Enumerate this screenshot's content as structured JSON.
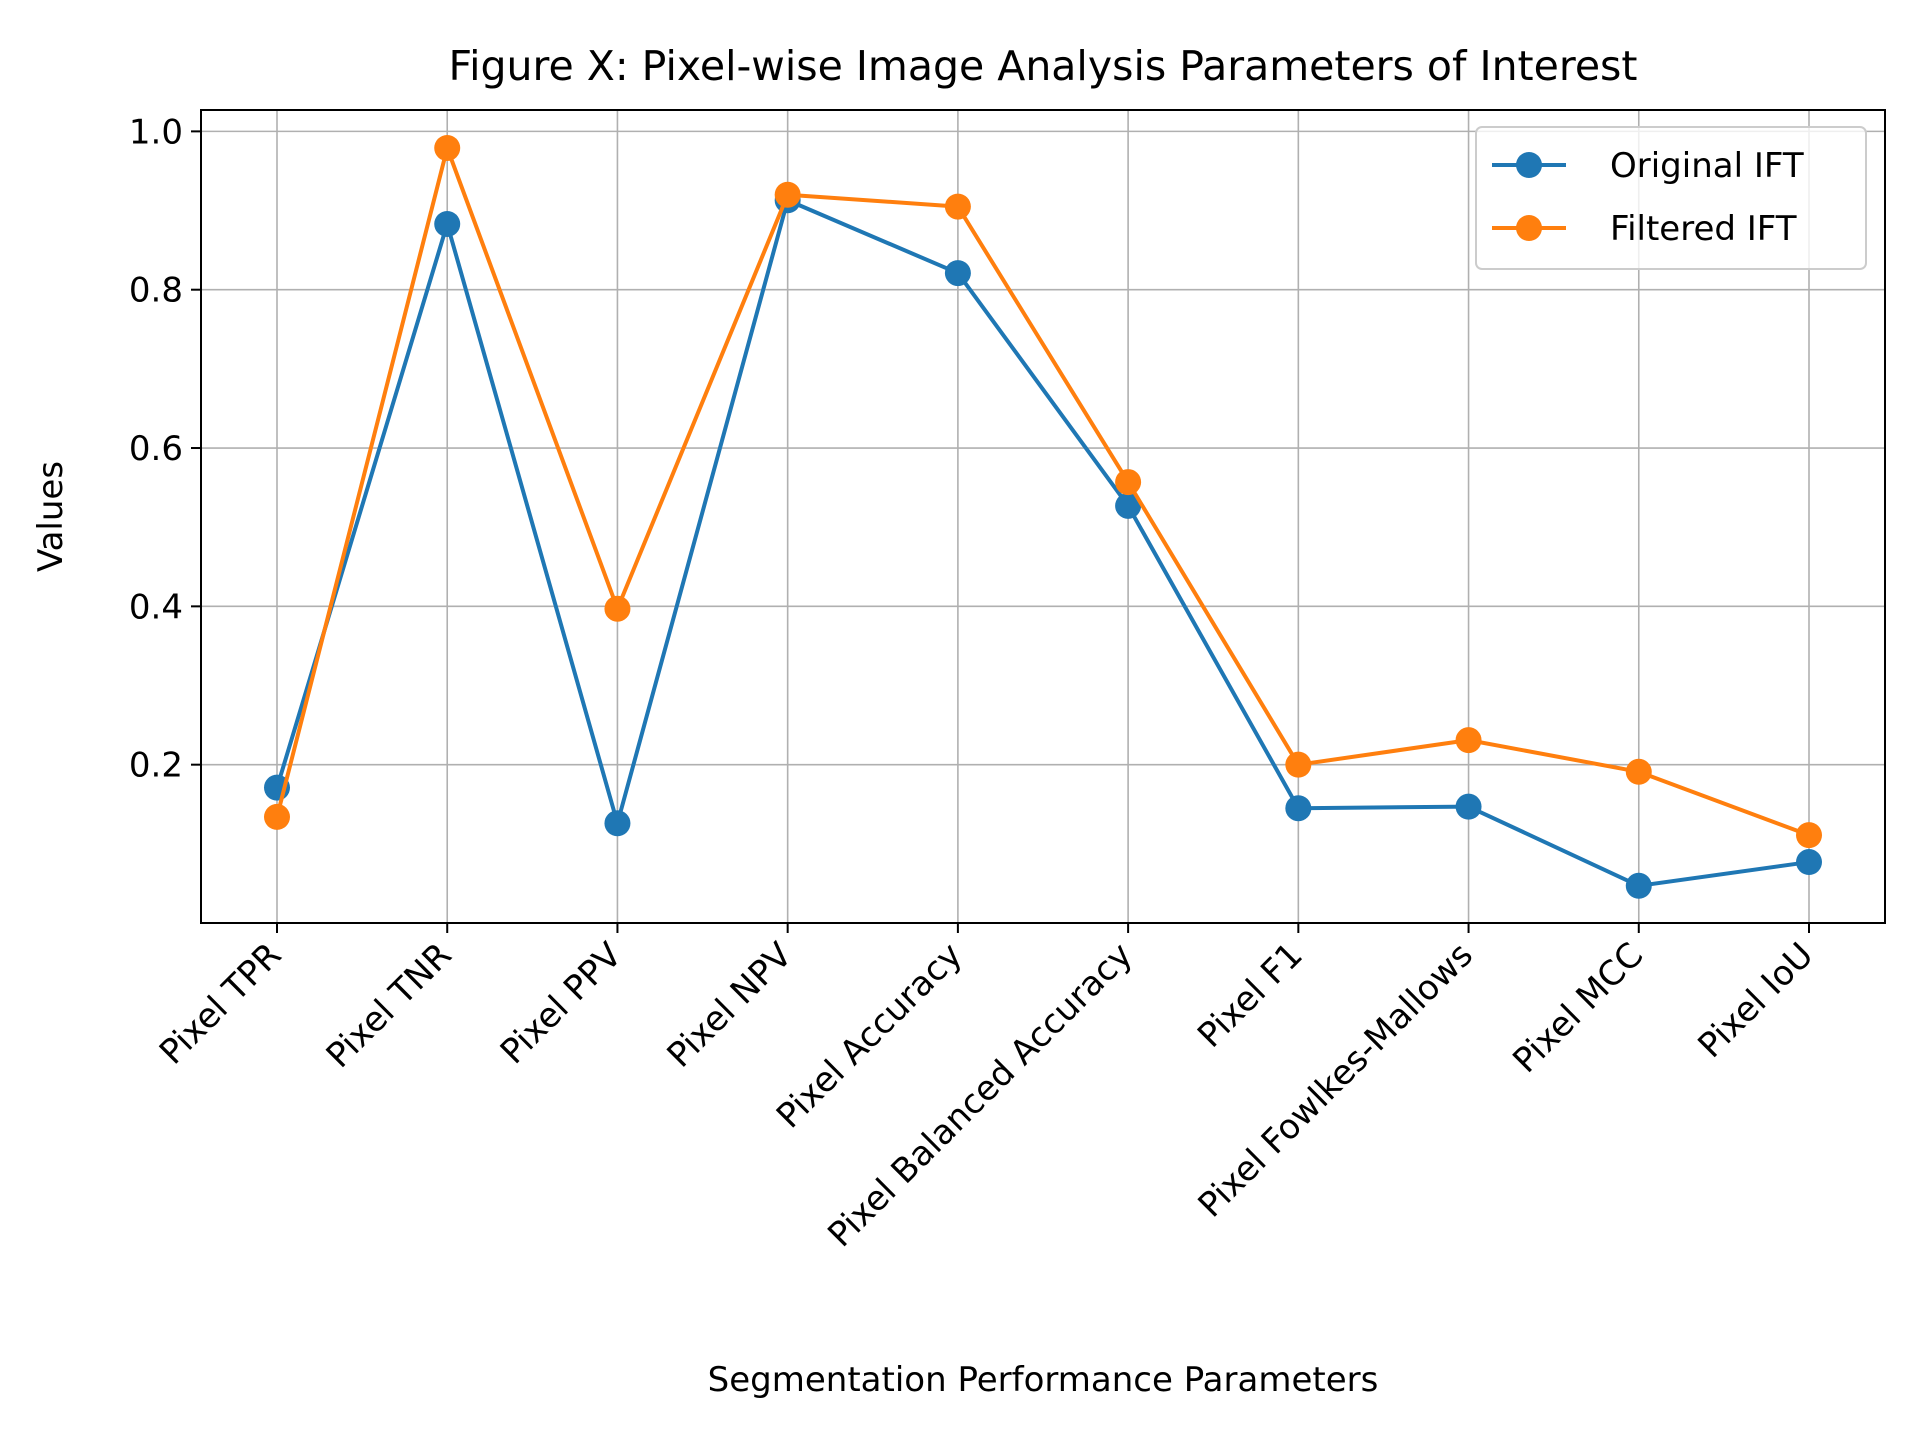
{
  "chart_data": {
    "type": "line",
    "title": "Figure X: Pixel-wise Image Analysis Parameters of Interest",
    "xlabel": "Segmentation Performance Parameters",
    "ylabel": "Values",
    "categories": [
      "Pixel TPR",
      "Pixel TNR",
      "Pixel PPV",
      "Pixel NPV",
      "Pixel Accuracy",
      "Pixel Balanced Accuracy",
      "Pixel F1",
      "Pixel Fowlkes-Mallows",
      "Pixel MCC",
      "Pixel IoU"
    ],
    "series": [
      {
        "name": "Original IFT",
        "color": "#1f77b4",
        "values": [
          0.171,
          0.883,
          0.126,
          0.913,
          0.821,
          0.527,
          0.145,
          0.147,
          0.047,
          0.077
        ]
      },
      {
        "name": "Filtered IFT",
        "color": "#ff7f0e",
        "values": [
          0.134,
          0.979,
          0.397,
          0.92,
          0.905,
          0.557,
          0.2,
          0.231,
          0.191,
          0.111
        ]
      }
    ],
    "yticks": [
      "0.2",
      "0.4",
      "0.6",
      "0.8",
      "1.0"
    ],
    "ylim": [
      -0.0,
      1.027
    ],
    "grid": true,
    "legend_position": "top-right"
  }
}
